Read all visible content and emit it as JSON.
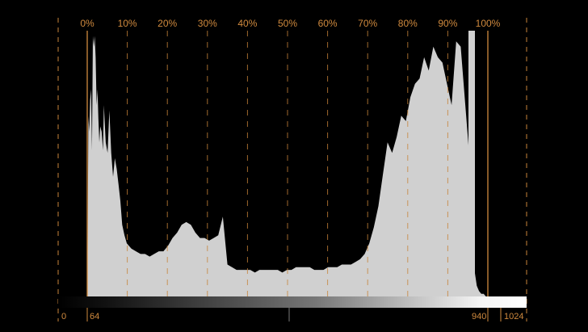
{
  "scope": {
    "colors": {
      "background": "#000000",
      "guide": "#c7843a",
      "guide_major": "#d08a3e",
      "fill": "#d0d0d0",
      "label": "#d08a3e"
    },
    "percent_labels": [
      "0%",
      "10%",
      "20%",
      "30%",
      "40%",
      "50%",
      "60%",
      "70%",
      "80%",
      "90%",
      "100%"
    ],
    "code_labels": [
      "0",
      "64",
      "940",
      "1024"
    ]
  },
  "chart_data": {
    "type": "area",
    "title": "",
    "xlabel": "",
    "ylabel": "",
    "x_range": [
      0,
      1024
    ],
    "y_range": [
      0,
      1
    ],
    "x": [
      64,
      66,
      68,
      70,
      72,
      74,
      76,
      78,
      80,
      82,
      84,
      86,
      88,
      90,
      92,
      95,
      98,
      100,
      104,
      108,
      112,
      116,
      120,
      124,
      128,
      132,
      136,
      140,
      145,
      150,
      160,
      170,
      180,
      190,
      200,
      210,
      220,
      230,
      240,
      250,
      260,
      270,
      280,
      290,
      300,
      310,
      320,
      330,
      340,
      350,
      360,
      370,
      380,
      390,
      400,
      410,
      420,
      430,
      440,
      450,
      460,
      470,
      480,
      490,
      500,
      510,
      520,
      530,
      540,
      550,
      560,
      570,
      580,
      590,
      600,
      610,
      620,
      630,
      640,
      650,
      660,
      670,
      680,
      690,
      700,
      710,
      720,
      730,
      740,
      750,
      760,
      770,
      780,
      790,
      800,
      810,
      820,
      830,
      840,
      850,
      860,
      870,
      880,
      890,
      900,
      905,
      910,
      915,
      920,
      925,
      930,
      935,
      940,
      944,
      948,
      952,
      956,
      960
    ],
    "values": [
      0.05,
      0.68,
      0.62,
      0.74,
      0.78,
      0.55,
      0.98,
      0.94,
      0.98,
      0.9,
      0.72,
      0.78,
      0.67,
      0.58,
      0.64,
      0.62,
      0.55,
      0.72,
      0.58,
      0.54,
      0.7,
      0.54,
      0.45,
      0.52,
      0.48,
      0.42,
      0.36,
      0.27,
      0.23,
      0.2,
      0.18,
      0.17,
      0.16,
      0.16,
      0.15,
      0.16,
      0.17,
      0.17,
      0.19,
      0.22,
      0.24,
      0.27,
      0.28,
      0.27,
      0.24,
      0.22,
      0.22,
      0.21,
      0.22,
      0.23,
      0.3,
      0.12,
      0.11,
      0.1,
      0.1,
      0.1,
      0.1,
      0.09,
      0.1,
      0.1,
      0.1,
      0.1,
      0.1,
      0.09,
      0.1,
      0.1,
      0.11,
      0.11,
      0.11,
      0.11,
      0.1,
      0.1,
      0.1,
      0.11,
      0.11,
      0.11,
      0.12,
      0.12,
      0.12,
      0.13,
      0.14,
      0.16,
      0.2,
      0.26,
      0.34,
      0.46,
      0.58,
      0.54,
      0.6,
      0.68,
      0.66,
      0.75,
      0.8,
      0.82,
      0.9,
      0.85,
      0.94,
      0.9,
      0.88,
      0.8,
      0.72,
      0.96,
      0.94,
      0.72,
      0.5,
      0.3,
      0.1,
      0.04,
      0.02,
      0.01,
      0.01,
      0.0,
      0.0,
      0.0,
      0.0,
      0.0,
      0.0,
      0.0
    ]
  }
}
